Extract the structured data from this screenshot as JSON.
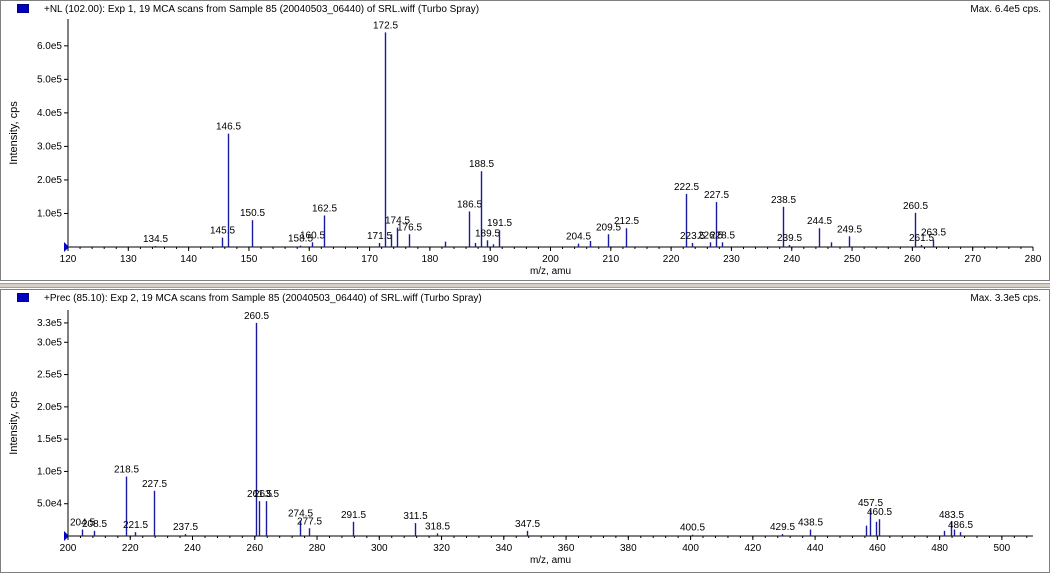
{
  "panels": [
    {
      "title": "+NL (102.00): Exp 1, 19 MCA scans from Sample 85 (20040503_06440) of SRL.wiff (Turbo Spray)",
      "max_label": "Max. 6.4e5 cps."
    },
    {
      "title": "+Prec (85.10): Exp 2, 19 MCA scans from Sample 85 (20040503_06440) of SRL.wiff (Turbo Spray)",
      "max_label": "Max. 3.3e5 cps."
    }
  ],
  "chart_data": [
    {
      "type": "bar",
      "xlabel": "m/z, amu",
      "ylabel": "Intensity, cps",
      "xlim": [
        120,
        280
      ],
      "ylim": [
        0,
        680000
      ],
      "xticks": [
        "120",
        "130",
        "140",
        "150",
        "160",
        "170",
        "180",
        "190",
        "200",
        "210",
        "220",
        "230",
        "240",
        "250",
        "260",
        "270",
        "280"
      ],
      "yticks": [
        {
          "value": 100000,
          "label": "1.0e5"
        },
        {
          "value": 200000,
          "label": "2.0e5"
        },
        {
          "value": 300000,
          "label": "3.0e5"
        },
        {
          "value": 400000,
          "label": "4.0e5"
        },
        {
          "value": 500000,
          "label": "5.0e5"
        },
        {
          "value": 600000,
          "label": "6.0e5"
        }
      ],
      "peaks": [
        {
          "x": 134.5,
          "y": 3000,
          "label": "134.5"
        },
        {
          "x": 145.5,
          "y": 28000,
          "label": "145.5"
        },
        {
          "x": 146.5,
          "y": 338000,
          "label": "146.5"
        },
        {
          "x": 150.5,
          "y": 80000,
          "label": "150.5"
        },
        {
          "x": 158.5,
          "y": 4000,
          "label": "158.5"
        },
        {
          "x": 160.5,
          "y": 14000,
          "label": "160.5"
        },
        {
          "x": 162.5,
          "y": 94000,
          "label": "162.5"
        },
        {
          "x": 171.5,
          "y": 12000,
          "label": "171.5"
        },
        {
          "x": 172.5,
          "y": 640000,
          "label": "172.5"
        },
        {
          "x": 173.5,
          "y": 38000,
          "label": ""
        },
        {
          "x": 174.5,
          "y": 58000,
          "label": "174.5"
        },
        {
          "x": 176.5,
          "y": 38000,
          "label": "176.5"
        },
        {
          "x": 182.5,
          "y": 16000,
          "label": ""
        },
        {
          "x": 186.5,
          "y": 106000,
          "label": "186.5"
        },
        {
          "x": 187.5,
          "y": 12000,
          "label": ""
        },
        {
          "x": 188.5,
          "y": 226000,
          "label": "188.5"
        },
        {
          "x": 189.5,
          "y": 20000,
          "label": "189.5"
        },
        {
          "x": 190.5,
          "y": 8000,
          "label": ""
        },
        {
          "x": 191.5,
          "y": 50000,
          "label": "191.5"
        },
        {
          "x": 204.5,
          "y": 10000,
          "label": "204.5"
        },
        {
          "x": 206.5,
          "y": 18000,
          "label": ""
        },
        {
          "x": 209.5,
          "y": 38000,
          "label": "209.5"
        },
        {
          "x": 212.5,
          "y": 56000,
          "label": "212.5"
        },
        {
          "x": 222.5,
          "y": 158000,
          "label": "222.5"
        },
        {
          "x": 223.5,
          "y": 12000,
          "label": "223.5"
        },
        {
          "x": 226.5,
          "y": 14000,
          "label": "226.5"
        },
        {
          "x": 227.5,
          "y": 134000,
          "label": "227.5"
        },
        {
          "x": 228.5,
          "y": 14000,
          "label": "228.5"
        },
        {
          "x": 238.5,
          "y": 120000,
          "label": "238.5"
        },
        {
          "x": 239.5,
          "y": 6000,
          "label": "239.5"
        },
        {
          "x": 244.5,
          "y": 56000,
          "label": "244.5"
        },
        {
          "x": 246.5,
          "y": 14000,
          "label": ""
        },
        {
          "x": 249.5,
          "y": 32000,
          "label": "249.5"
        },
        {
          "x": 260.5,
          "y": 102000,
          "label": "260.5"
        },
        {
          "x": 261.5,
          "y": 6000,
          "label": "261.5"
        },
        {
          "x": 263.5,
          "y": 22000,
          "label": "263.5"
        }
      ]
    },
    {
      "type": "bar",
      "xlabel": "m/z, amu",
      "ylabel": "Intensity, cps",
      "xlim": [
        200,
        510
      ],
      "ylim": [
        0,
        350000
      ],
      "xticks": [
        "200",
        "220",
        "240",
        "260",
        "280",
        "300",
        "320",
        "340",
        "360",
        "380",
        "400",
        "420",
        "440",
        "460",
        "480",
        "500"
      ],
      "yticks": [
        {
          "value": 50000,
          "label": "5.0e4"
        },
        {
          "value": 100000,
          "label": "1.0e5"
        },
        {
          "value": 150000,
          "label": "1.5e5"
        },
        {
          "value": 200000,
          "label": "2.0e5"
        },
        {
          "value": 250000,
          "label": "2.5e5"
        },
        {
          "value": 300000,
          "label": "3.0e5"
        },
        {
          "value": 330000,
          "label": "3.3e5"
        }
      ],
      "peaks": [
        {
          "x": 204.5,
          "y": 10000,
          "label": "204.5"
        },
        {
          "x": 208.5,
          "y": 8000,
          "label": "208.5"
        },
        {
          "x": 218.5,
          "y": 92000,
          "label": "218.5"
        },
        {
          "x": 221.5,
          "y": 6000,
          "label": "221.5"
        },
        {
          "x": 227.5,
          "y": 70000,
          "label": "227.5"
        },
        {
          "x": 237.5,
          "y": 3000,
          "label": "237.5"
        },
        {
          "x": 260.5,
          "y": 330000,
          "label": "260.5"
        },
        {
          "x": 261.5,
          "y": 54000,
          "label": "261.5"
        },
        {
          "x": 263.5,
          "y": 54000,
          "label": "263.5"
        },
        {
          "x": 274.5,
          "y": 24000,
          "label": "274.5"
        },
        {
          "x": 277.5,
          "y": 12000,
          "label": "277.5"
        },
        {
          "x": 291.5,
          "y": 22000,
          "label": "291.5"
        },
        {
          "x": 311.5,
          "y": 20000,
          "label": "311.5"
        },
        {
          "x": 318.5,
          "y": 4000,
          "label": "318.5"
        },
        {
          "x": 347.5,
          "y": 8000,
          "label": "347.5"
        },
        {
          "x": 400.5,
          "y": 2000,
          "label": "400.5"
        },
        {
          "x": 429.5,
          "y": 3000,
          "label": "429.5"
        },
        {
          "x": 438.5,
          "y": 10000,
          "label": "438.5"
        },
        {
          "x": 456.5,
          "y": 16000,
          "label": ""
        },
        {
          "x": 457.5,
          "y": 40000,
          "label": "457.5"
        },
        {
          "x": 459.5,
          "y": 22000,
          "label": ""
        },
        {
          "x": 460.5,
          "y": 26000,
          "label": "460.5"
        },
        {
          "x": 481.5,
          "y": 8000,
          "label": ""
        },
        {
          "x": 483.5,
          "y": 22000,
          "label": "483.5"
        },
        {
          "x": 484.5,
          "y": 10000,
          "label": ""
        },
        {
          "x": 486.5,
          "y": 6000,
          "label": "486.5"
        }
      ]
    }
  ]
}
